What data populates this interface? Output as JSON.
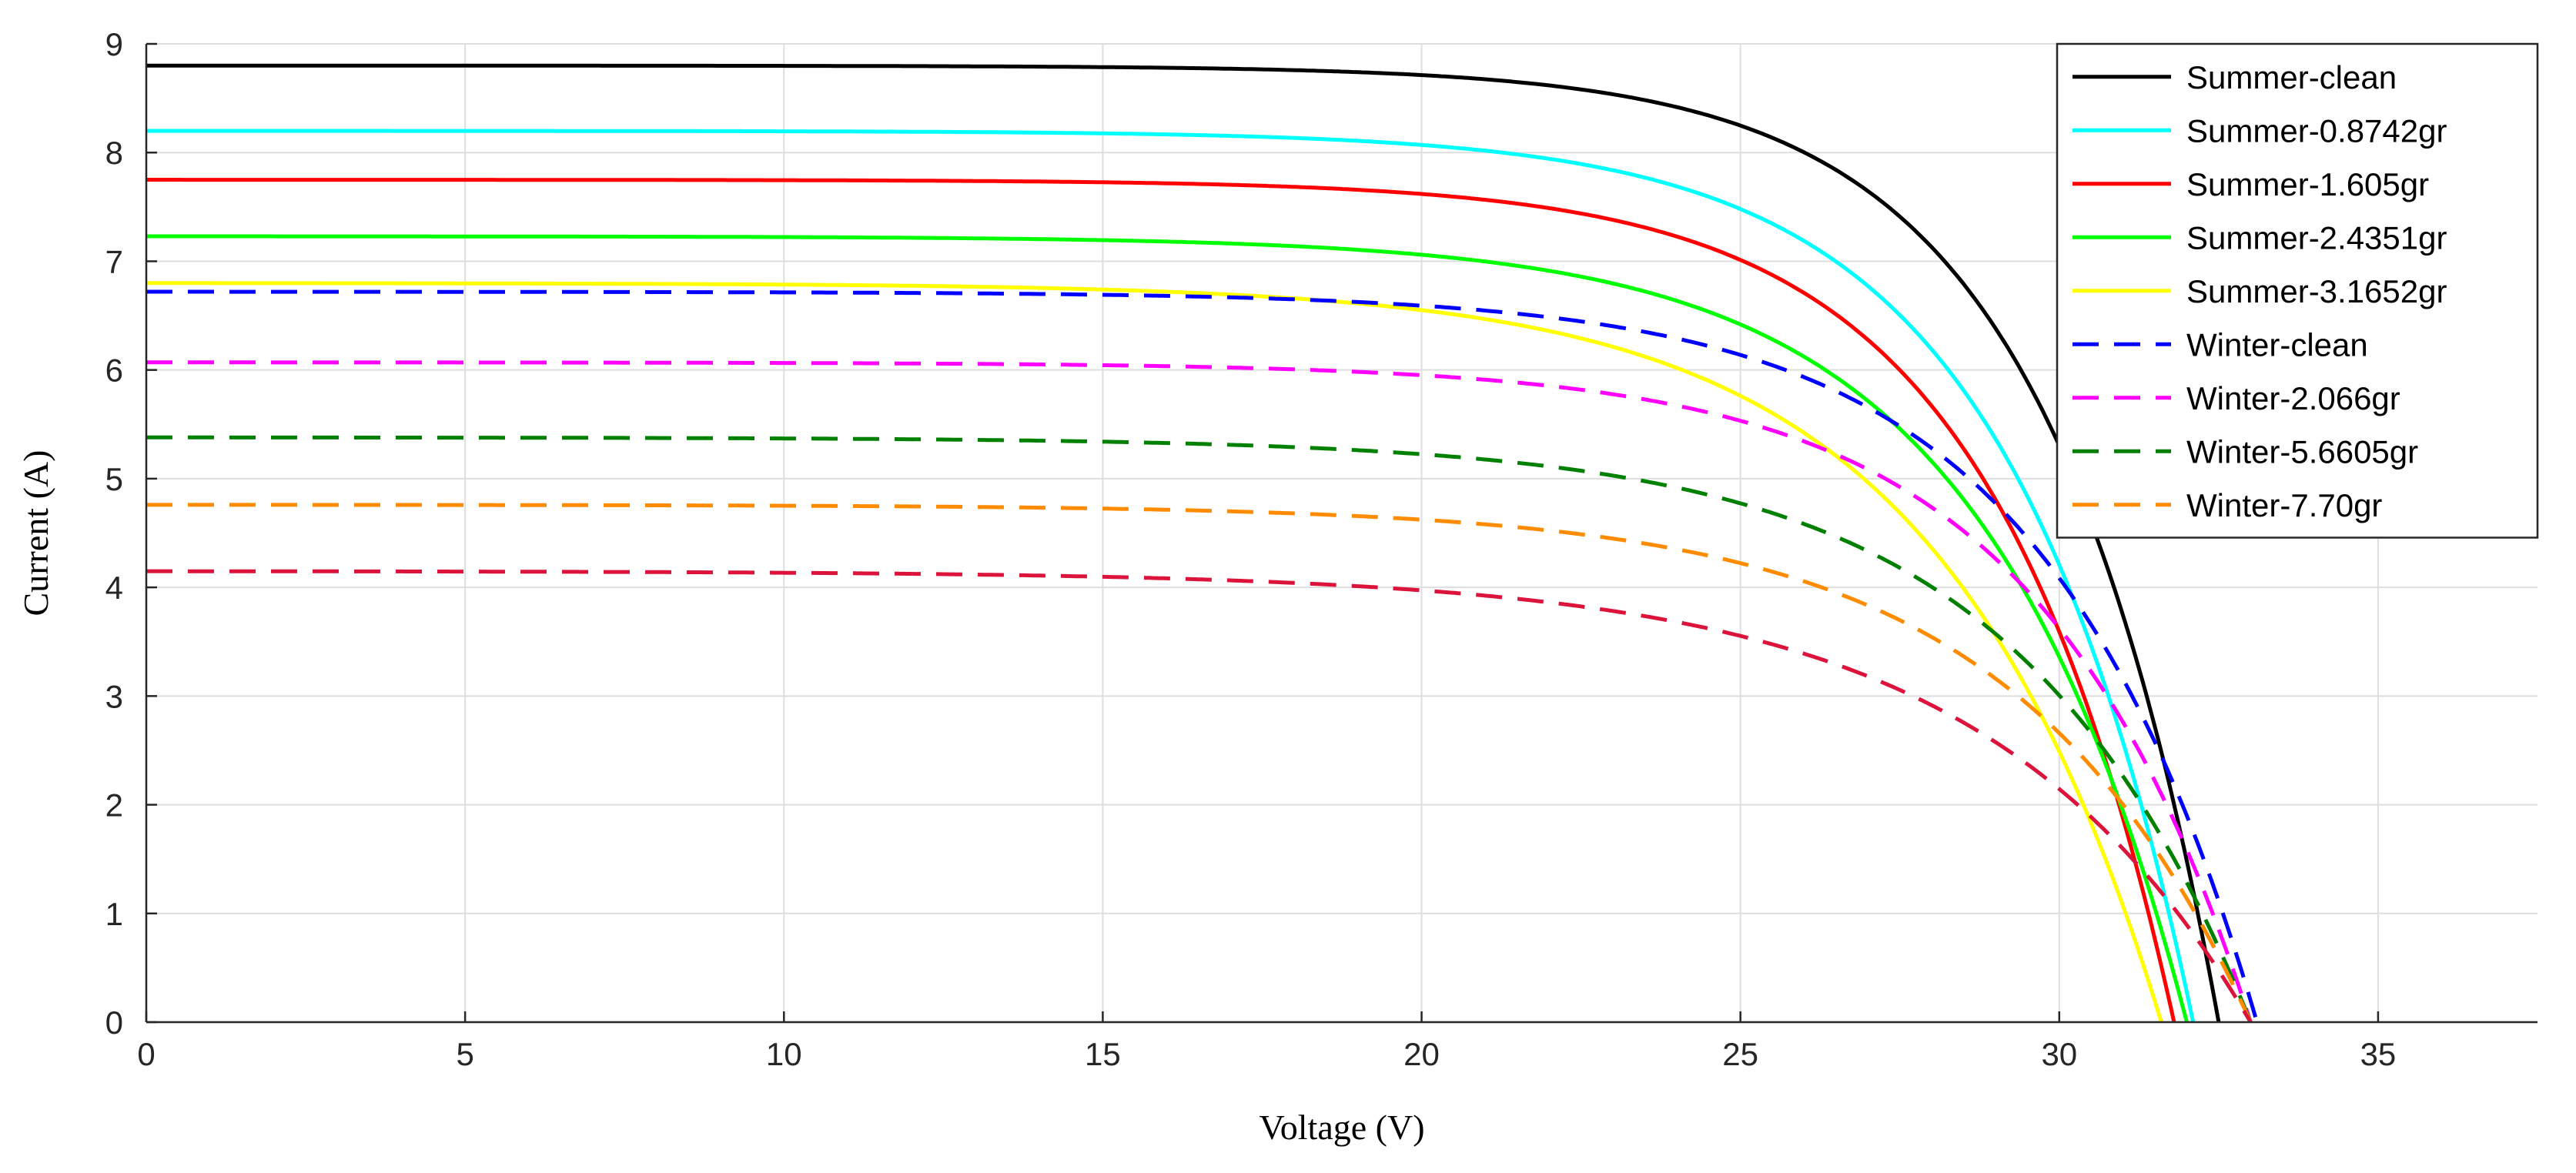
{
  "chart_data": {
    "type": "line",
    "title": "",
    "xlabel": "Voltage (V)",
    "ylabel": "Current (A)",
    "xlim": [
      0,
      37.5
    ],
    "ylim": [
      0,
      9
    ],
    "xticks": [
      "0",
      "5",
      "10",
      "15",
      "20",
      "25",
      "30",
      "35"
    ],
    "yticks": [
      "0",
      "1",
      "2",
      "3",
      "4",
      "5",
      "6",
      "7",
      "8",
      "9"
    ],
    "grid": true,
    "legend_position": "top-right",
    "series": [
      {
        "name": "Summer-clean",
        "color": "#000000",
        "style": "solid",
        "isc": 8.8,
        "voc": 32.5,
        "n": 12
      },
      {
        "name": "Summer-0.8742gr",
        "color": "#00ffff",
        "style": "solid",
        "isc": 8.2,
        "voc": 32.1,
        "n": 11
      },
      {
        "name": "Summer-1.605gr",
        "color": "#ff0000",
        "style": "solid",
        "isc": 7.75,
        "voc": 31.8,
        "n": 11
      },
      {
        "name": "Summer-2.4351gr",
        "color": "#00ff00",
        "style": "solid",
        "isc": 7.23,
        "voc": 32.0,
        "n": 10
      },
      {
        "name": "Summer-3.1652gr",
        "color": "#ffff00",
        "style": "solid",
        "isc": 6.8,
        "voc": 31.6,
        "n": 9
      },
      {
        "name": "Winter-clean",
        "color": "#0000ff",
        "style": "dashed",
        "isc": 6.72,
        "voc": 33.1,
        "n": 10
      },
      {
        "name": "Winter-2.066gr",
        "color": "#ff00ff",
        "style": "dashed",
        "isc": 6.07,
        "voc": 33.0,
        "n": 10
      },
      {
        "name": "Winter-5.6605gr",
        "color": "#008000",
        "style": "dashed",
        "isc": 5.38,
        "voc": 33.0,
        "n": 9
      },
      {
        "name": "Winter-7.70gr",
        "color": "#ff8c00",
        "style": "dashed",
        "isc": 4.76,
        "voc": 33.0,
        "n": 9
      },
      {
        "name": "",
        "color": "#dc143c",
        "style": "dashed",
        "isc": 4.15,
        "voc": 33.0,
        "n": 8
      }
    ]
  }
}
